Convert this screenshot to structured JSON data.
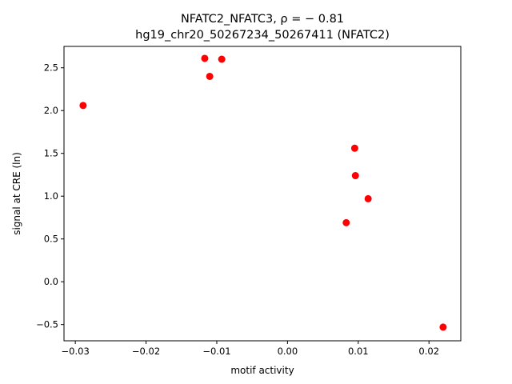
{
  "chart_data": {
    "type": "scatter",
    "title_line1": "NFATC2_NFATC3, ρ = − 0.81",
    "title_line2": "hg19_chr20_50267234_50267411 (NFATC2)",
    "xlabel": "motif activity",
    "ylabel": "signal at CRE (ln)",
    "xlim": [
      -0.0316,
      0.0245
    ],
    "ylim": [
      -0.69,
      2.75
    ],
    "x_ticks": [
      -0.03,
      -0.02,
      -0.01,
      0.0,
      0.01,
      0.02
    ],
    "x_tick_labels": [
      "−0.03",
      "−0.02",
      "−0.01",
      "0.00",
      "0.01",
      "0.02"
    ],
    "y_ticks": [
      -0.5,
      0.0,
      0.5,
      1.0,
      1.5,
      2.0,
      2.5
    ],
    "y_tick_labels": [
      "−0.5",
      "0.0",
      "0.5",
      "1.0",
      "1.5",
      "2.0",
      "2.5"
    ],
    "grid": false,
    "marker_color": "#ff0000",
    "points": [
      {
        "x": -0.0289,
        "y": 2.06
      },
      {
        "x": -0.0117,
        "y": 2.61
      },
      {
        "x": -0.011,
        "y": 2.4
      },
      {
        "x": -0.0093,
        "y": 2.6
      },
      {
        "x": 0.0083,
        "y": 0.69
      },
      {
        "x": 0.0095,
        "y": 1.56
      },
      {
        "x": 0.0096,
        "y": 1.24
      },
      {
        "x": 0.0114,
        "y": 0.97
      },
      {
        "x": 0.022,
        "y": -0.53
      }
    ]
  }
}
